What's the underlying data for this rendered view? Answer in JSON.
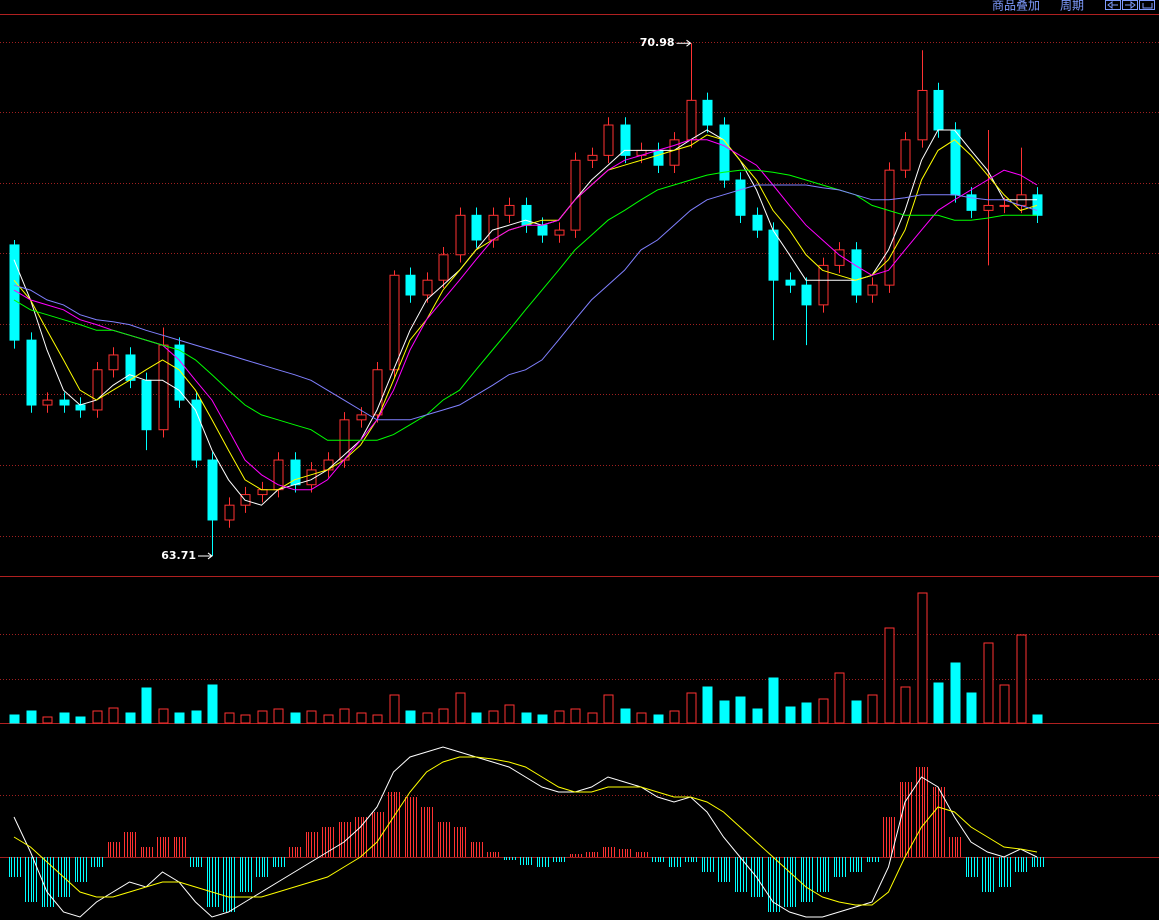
{
  "toolbar": {
    "overlay": "商品叠加",
    "period": "周期"
  },
  "chart_data": [
    {
      "type": "candlestick",
      "up_color": "#ff3232",
      "down_color": "#00ffff",
      "grid": true,
      "ylim": [
        63.44,
        71.38
      ],
      "yticks": [
        64,
        65,
        66,
        67,
        68,
        69,
        70,
        71
      ],
      "annotations": [
        70.98,
        63.71
      ],
      "open": [
        68.12,
        66.77,
        65.85,
        65.92,
        65.85,
        65.78,
        66.35,
        66.56,
        66.2,
        65.5,
        66.7,
        65.92,
        65.07,
        64.22,
        64.43,
        64.58,
        64.65,
        65.07,
        64.72,
        64.93,
        65.07,
        65.64,
        65.71,
        66.35,
        67.69,
        67.41,
        67.62,
        67.98,
        68.54,
        68.19,
        68.54,
        68.68,
        68.4,
        68.26,
        68.33,
        69.32,
        69.39,
        69.82,
        69.39,
        69.46,
        69.25,
        69.61,
        70.17,
        69.82,
        69.04,
        68.54,
        68.33,
        67.62,
        67.55,
        67.27,
        67.83,
        68.05,
        67.41,
        67.55,
        69.18,
        69.61,
        70.31,
        69.75,
        68.83,
        68.61,
        68.68,
        68.68,
        68.83
      ],
      "high": [
        68.19,
        66.88,
        66.03,
        66.03,
        65.96,
        66.46,
        66.67,
        66.67,
        66.31,
        66.95,
        66.81,
        66.03,
        65.18,
        64.54,
        64.69,
        64.76,
        65.18,
        65.18,
        65.04,
        65.18,
        65.75,
        65.82,
        66.46,
        67.76,
        67.8,
        67.73,
        68.09,
        68.65,
        68.65,
        68.65,
        68.79,
        68.79,
        68.51,
        68.44,
        69.43,
        69.5,
        69.93,
        69.93,
        69.57,
        69.57,
        69.72,
        70.98,
        70.28,
        69.93,
        69.15,
        68.65,
        68.44,
        67.73,
        67.66,
        67.94,
        68.16,
        68.16,
        67.66,
        69.29,
        69.72,
        70.88,
        70.42,
        69.86,
        68.94,
        69.75,
        68.79,
        69.5,
        68.94
      ],
      "low": [
        66.65,
        65.74,
        65.74,
        65.74,
        65.67,
        65.67,
        66.24,
        66.09,
        65.21,
        65.39,
        65.81,
        64.96,
        63.71,
        64.11,
        64.32,
        64.47,
        64.54,
        64.61,
        64.61,
        64.82,
        64.96,
        65.53,
        65.6,
        66.24,
        67.3,
        67.3,
        67.51,
        67.87,
        68.08,
        68.08,
        68.43,
        68.29,
        68.15,
        68.15,
        68.22,
        69.21,
        69.28,
        69.28,
        69.28,
        69.14,
        69.14,
        69.5,
        69.71,
        68.93,
        68.43,
        68.22,
        66.77,
        67.44,
        66.7,
        67.16,
        67.72,
        67.3,
        67.3,
        67.44,
        69.07,
        69.5,
        69.64,
        68.72,
        68.5,
        67.83,
        68.57,
        68.57,
        68.43
      ],
      "close": [
        66.77,
        65.85,
        65.92,
        65.85,
        65.78,
        66.35,
        66.56,
        66.2,
        65.5,
        66.7,
        65.92,
        65.07,
        64.22,
        64.43,
        64.58,
        64.65,
        65.07,
        64.72,
        64.93,
        65.07,
        65.64,
        65.71,
        66.35,
        67.69,
        67.41,
        67.62,
        67.98,
        68.54,
        68.19,
        68.54,
        68.68,
        68.4,
        68.26,
        68.33,
        69.32,
        69.39,
        69.82,
        69.39,
        69.46,
        69.25,
        69.61,
        70.17,
        69.82,
        69.04,
        68.54,
        68.33,
        67.62,
        67.55,
        67.27,
        67.83,
        68.05,
        67.41,
        67.55,
        69.18,
        69.61,
        70.31,
        69.75,
        68.83,
        68.61,
        68.68,
        68.68,
        68.83,
        68.54
      ],
      "lines": [
        {
          "color": "#ffffff",
          "values": [
            67.91,
            67.34,
            66.63,
            66.06,
            65.85,
            65.92,
            66.13,
            66.28,
            66.2,
            66.2,
            66.06,
            65.78,
            65.21,
            64.79,
            64.5,
            64.43,
            64.65,
            64.72,
            64.79,
            64.93,
            65.14,
            65.35,
            65.78,
            66.35,
            66.91,
            67.34,
            67.55,
            67.76,
            68.05,
            68.33,
            68.4,
            68.47,
            68.4,
            68.47,
            68.76,
            69.04,
            69.25,
            69.46,
            69.46,
            69.46,
            69.46,
            69.61,
            69.75,
            69.61,
            69.32,
            68.9,
            68.33,
            67.98,
            67.62,
            67.62,
            67.62,
            67.62,
            67.69,
            68.05,
            68.61,
            69.32,
            69.75,
            69.75,
            69.46,
            69.18,
            68.76,
            68.76,
            68.76
          ]
        },
        {
          "color": "#ffff00",
          "values": [
            67.62,
            67.34,
            66.91,
            66.49,
            66.06,
            65.92,
            66.06,
            66.2,
            66.35,
            66.49,
            66.35,
            66.06,
            65.64,
            65.21,
            64.79,
            64.65,
            64.65,
            64.79,
            64.86,
            64.93,
            65.07,
            65.28,
            65.64,
            66.2,
            66.77,
            67.06,
            67.48,
            67.76,
            68.05,
            68.19,
            68.33,
            68.4,
            68.47,
            68.47,
            68.76,
            68.97,
            69.18,
            69.25,
            69.32,
            69.39,
            69.46,
            69.53,
            69.68,
            69.61,
            69.32,
            69.04,
            68.61,
            68.33,
            67.98,
            67.76,
            67.69,
            67.62,
            67.69,
            67.91,
            68.33,
            69.04,
            69.46,
            69.61,
            69.39,
            69.11,
            68.83,
            68.61,
            68.68
          ]
        },
        {
          "color": "#ff00ff",
          "values": [
            67.48,
            67.34,
            67.27,
            67.2,
            67.06,
            66.99,
            66.91,
            66.84,
            66.77,
            66.7,
            66.49,
            66.2,
            65.92,
            65.5,
            65.07,
            64.86,
            64.72,
            64.65,
            64.65,
            64.79,
            65.07,
            65.35,
            65.64,
            66.06,
            66.63,
            67.06,
            67.34,
            67.62,
            67.91,
            68.19,
            68.33,
            68.4,
            68.4,
            68.47,
            68.76,
            68.97,
            69.18,
            69.32,
            69.39,
            69.46,
            69.53,
            69.61,
            69.61,
            69.53,
            69.39,
            69.25,
            68.97,
            68.68,
            68.4,
            68.19,
            67.98,
            67.83,
            67.69,
            67.76,
            68.05,
            68.33,
            68.61,
            68.76,
            68.9,
            69.04,
            69.18,
            69.11,
            68.97
          ]
        },
        {
          "color": "#00ff00",
          "values": [
            67.34,
            67.2,
            67.13,
            67.06,
            66.99,
            66.91,
            66.91,
            66.84,
            66.77,
            66.7,
            66.63,
            66.49,
            66.28,
            66.06,
            65.85,
            65.71,
            65.64,
            65.57,
            65.5,
            65.35,
            65.35,
            65.35,
            65.35,
            65.43,
            65.57,
            65.71,
            65.92,
            66.06,
            66.35,
            66.63,
            66.91,
            67.2,
            67.48,
            67.76,
            68.05,
            68.26,
            68.47,
            68.61,
            68.76,
            68.9,
            68.97,
            69.04,
            69.11,
            69.15,
            69.18,
            69.18,
            69.15,
            69.11,
            69.04,
            68.97,
            68.9,
            68.83,
            68.68,
            68.61,
            68.54,
            68.54,
            68.54,
            68.47,
            68.47,
            68.5,
            68.54,
            68.54,
            68.54
          ]
        },
        {
          "color": "#8080ff",
          "values": [
            67.55,
            67.48,
            67.34,
            67.27,
            67.13,
            67.06,
            67.03,
            66.99,
            66.91,
            66.84,
            66.77,
            66.7,
            66.63,
            66.56,
            66.49,
            66.42,
            66.35,
            66.28,
            66.2,
            66.06,
            65.92,
            65.78,
            65.64,
            65.64,
            65.64,
            65.71,
            65.78,
            65.85,
            65.99,
            66.13,
            66.28,
            66.35,
            66.49,
            66.77,
            67.06,
            67.34,
            67.55,
            67.76,
            68.05,
            68.19,
            68.4,
            68.61,
            68.76,
            68.83,
            68.9,
            68.97,
            68.97,
            68.97,
            68.97,
            68.93,
            68.9,
            68.83,
            68.76,
            68.76,
            68.79,
            68.83,
            68.83,
            68.83,
            68.79,
            68.76,
            68.76,
            68.68,
            68.61
          ]
        }
      ]
    },
    {
      "type": "volume",
      "grid": true,
      "ylim": [
        0,
        145
      ],
      "yticks": [
        44,
        89
      ],
      "values": [
        8,
        12,
        6,
        10,
        6,
        12,
        15,
        10,
        35,
        14,
        10,
        12,
        38,
        10,
        8,
        12,
        14,
        10,
        12,
        8,
        14,
        10,
        8,
        28,
        12,
        10,
        14,
        30,
        10,
        12,
        18,
        10,
        8,
        12,
        14,
        10,
        28,
        14,
        10,
        8,
        12,
        30,
        36,
        22,
        26,
        14,
        45,
        16,
        20,
        24,
        50,
        22,
        28,
        95,
        36,
        130,
        40,
        60,
        30,
        80,
        38,
        88,
        8
      ]
    },
    {
      "type": "macd",
      "up_color": "#ff3232",
      "down_color": "#00ffff",
      "grid": true,
      "ylim": [
        -63,
        133
      ],
      "yticks": [
        0,
        62
      ],
      "values": [
        -20,
        -45,
        -50,
        -40,
        -25,
        -10,
        15,
        25,
        10,
        20,
        20,
        -10,
        -50,
        -55,
        -35,
        -20,
        -10,
        10,
        25,
        30,
        35,
        40,
        45,
        65,
        60,
        50,
        35,
        30,
        15,
        5,
        -3,
        -8,
        -10,
        -5,
        3,
        5,
        10,
        8,
        5,
        -5,
        -10,
        -5,
        -15,
        -25,
        -35,
        -40,
        -55,
        -50,
        -45,
        -35,
        -20,
        -15,
        -5,
        40,
        75,
        90,
        70,
        20,
        -20,
        -35,
        -30,
        -15,
        -10
      ],
      "lines": [
        {
          "color": "#ffffff",
          "values": [
            40,
            5,
            -35,
            -55,
            -60,
            -45,
            -35,
            -25,
            -30,
            -15,
            -25,
            -45,
            -60,
            -55,
            -45,
            -35,
            -25,
            -15,
            -5,
            5,
            15,
            30,
            50,
            85,
            100,
            105,
            110,
            105,
            100,
            95,
            90,
            80,
            70,
            65,
            65,
            70,
            80,
            75,
            70,
            60,
            55,
            60,
            45,
            20,
            0,
            -20,
            -45,
            -55,
            -60,
            -60,
            -55,
            -50,
            -45,
            -10,
            55,
            80,
            70,
            40,
            15,
            5,
            0,
            8,
            0
          ]
        },
        {
          "color": "#ffff00",
          "values": [
            20,
            10,
            -5,
            -20,
            -35,
            -40,
            -40,
            -35,
            -30,
            -25,
            -25,
            -30,
            -35,
            -40,
            -40,
            -40,
            -35,
            -30,
            -25,
            -20,
            -10,
            0,
            15,
            40,
            65,
            85,
            95,
            100,
            100,
            98,
            95,
            90,
            80,
            70,
            65,
            65,
            70,
            70,
            70,
            65,
            60,
            60,
            55,
            45,
            30,
            15,
            0,
            -15,
            -30,
            -40,
            -45,
            -48,
            -48,
            -35,
            0,
            30,
            50,
            45,
            30,
            20,
            10,
            8,
            5
          ]
        }
      ]
    }
  ]
}
